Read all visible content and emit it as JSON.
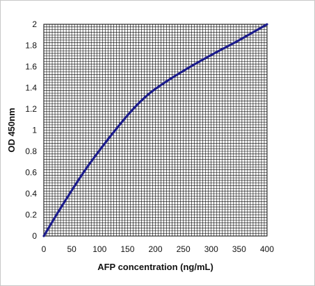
{
  "chart_data": {
    "type": "line",
    "title": "",
    "xlabel": "AFP concentration (ng/mL)",
    "ylabel": "OD 450nm",
    "xlim": [
      0,
      400
    ],
    "ylim": [
      0,
      2
    ],
    "x_ticks": [
      "0",
      "50",
      "100",
      "150",
      "200",
      "250",
      "300",
      "350",
      "400"
    ],
    "y_ticks": [
      "0",
      "0.2",
      "0.4",
      "0.6",
      "0.8",
      "1",
      "1.2",
      "1.4",
      "1.6",
      "1.8",
      "2"
    ],
    "grid": true,
    "legend": "none",
    "series": [
      {
        "color": "#1c1c8c",
        "x": [
          0,
          25,
          50,
          75,
          100,
          125,
          150,
          175,
          200,
          250,
          300,
          350,
          400
        ],
        "y": [
          0,
          0.22,
          0.43,
          0.63,
          0.81,
          0.98,
          1.14,
          1.28,
          1.39,
          1.56,
          1.71,
          1.85,
          2.0
        ]
      }
    ]
  }
}
